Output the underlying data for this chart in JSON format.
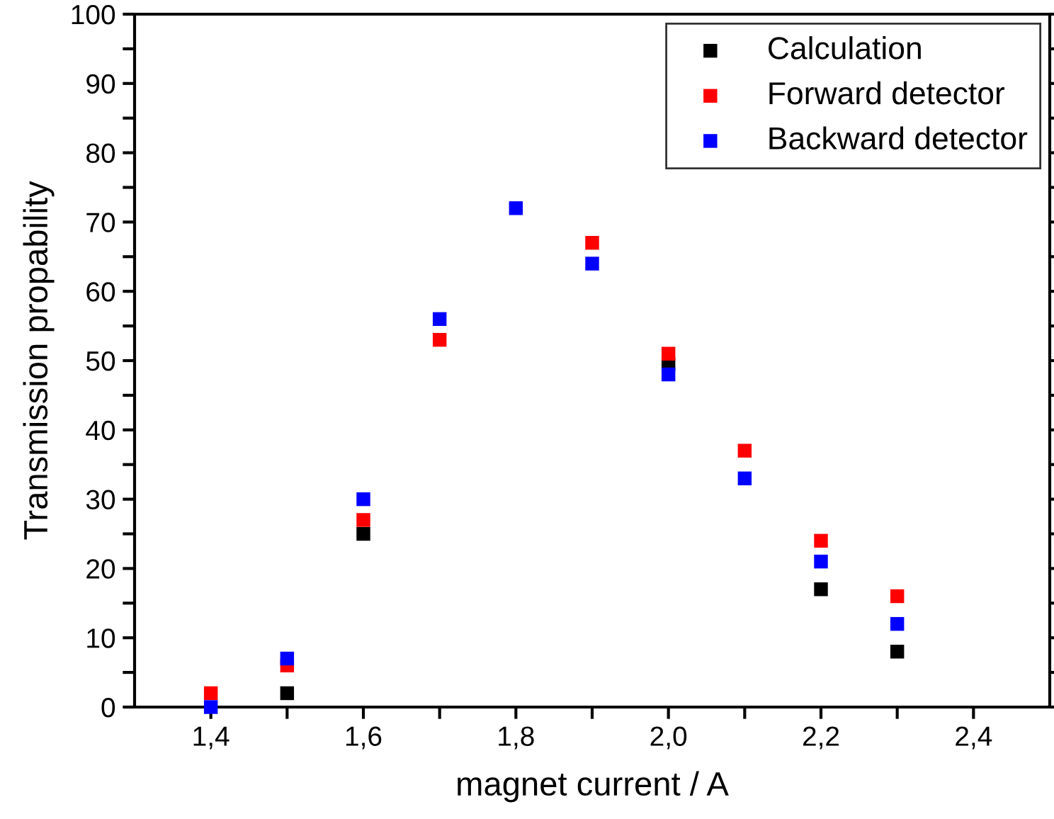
{
  "chart_data": {
    "type": "scatter",
    "xlabel": "magnet current / A",
    "ylabel": "Transmission propability",
    "x": [
      1.4,
      1.5,
      1.6,
      1.7,
      1.8,
      1.9,
      2.0,
      2.1,
      2.2,
      2.3
    ],
    "series": [
      {
        "name": "Calculation",
        "color": "#000000",
        "values": [
          null,
          2,
          25,
          null,
          null,
          null,
          49.5,
          null,
          17,
          8
        ]
      },
      {
        "name": "Forward detector",
        "color": "#ff0000",
        "values": [
          2,
          6,
          27,
          53,
          null,
          67,
          51,
          37,
          24,
          16
        ]
      },
      {
        "name": "Backward detector",
        "color": "#0000ff",
        "values": [
          0,
          7,
          30,
          56,
          72,
          64,
          48,
          33,
          21,
          12
        ]
      }
    ],
    "xlim": [
      1.3,
      2.5
    ],
    "ylim": [
      0,
      100
    ],
    "xticks": [
      {
        "value": 1.4,
        "label": "1,4"
      },
      {
        "value": 1.5,
        "label": null
      },
      {
        "value": 1.6,
        "label": "1,6"
      },
      {
        "value": 1.7,
        "label": null
      },
      {
        "value": 1.8,
        "label": "1,8"
      },
      {
        "value": 1.9,
        "label": null
      },
      {
        "value": 2.0,
        "label": "2,0"
      },
      {
        "value": 2.1,
        "label": null
      },
      {
        "value": 2.2,
        "label": "2,2"
      },
      {
        "value": 2.3,
        "label": null
      },
      {
        "value": 2.4,
        "label": "2,4"
      }
    ],
    "yticks": [
      0,
      {
        "value": 5,
        "label": null
      },
      10,
      {
        "value": 15,
        "label": null
      },
      20,
      {
        "value": 25,
        "label": null
      },
      30,
      {
        "value": 35,
        "label": null
      },
      40,
      {
        "value": 45,
        "label": null
      },
      50,
      {
        "value": 55,
        "label": null
      },
      60,
      {
        "value": 65,
        "label": null
      },
      70,
      {
        "value": 75,
        "label": null
      },
      80,
      {
        "value": 85,
        "label": null
      },
      90,
      {
        "value": 95,
        "label": null
      },
      100
    ],
    "marker": "square",
    "legend": "top right",
    "grid": false
  }
}
